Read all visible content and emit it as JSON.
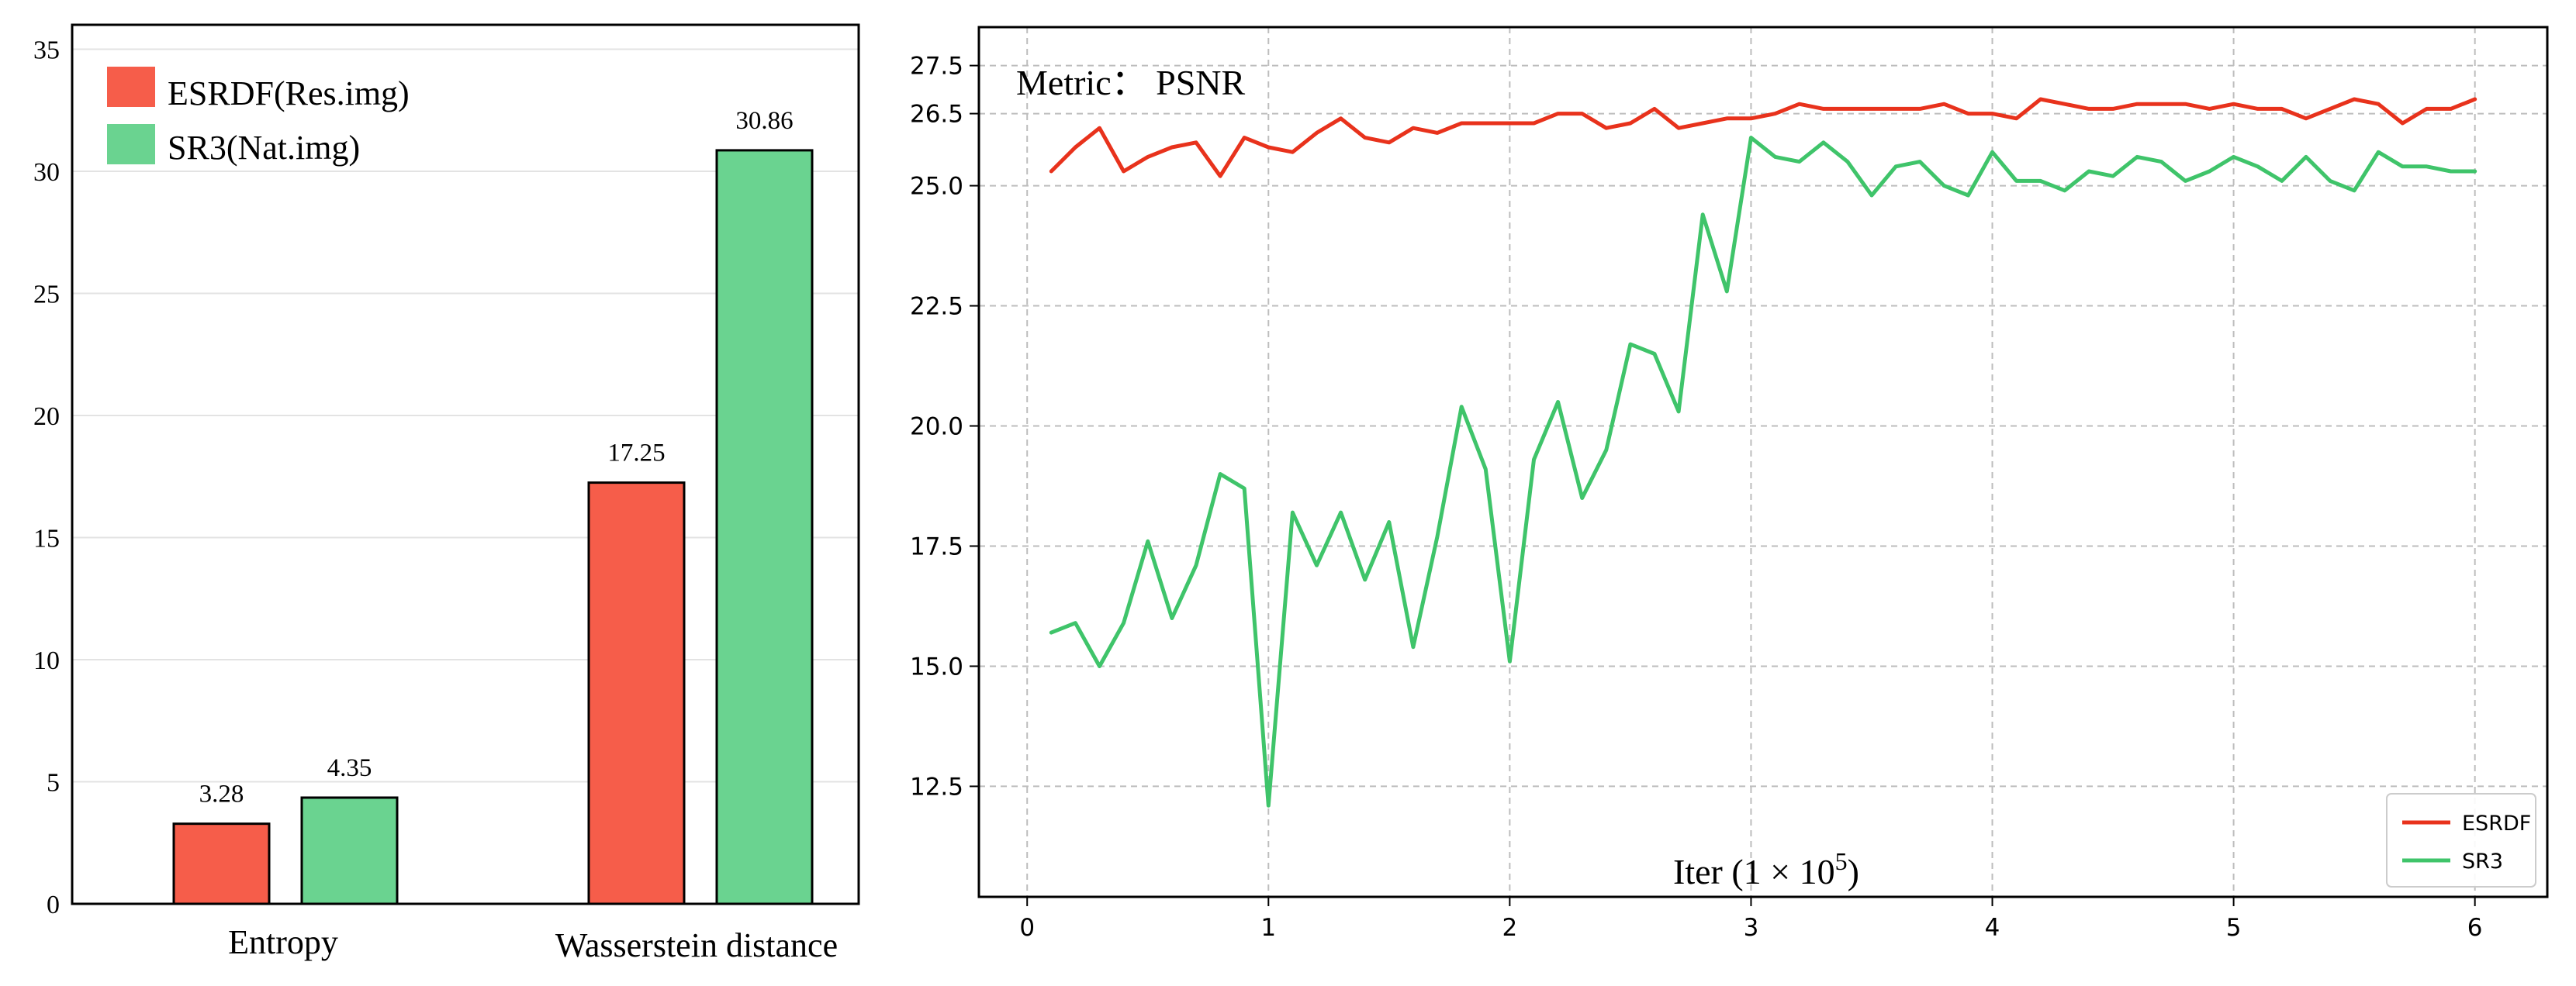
{
  "chart_data": [
    {
      "type": "bar",
      "categories": [
        "Entropy",
        "Wasserstein distance"
      ],
      "series": [
        {
          "name": "ESRDF(Res.img)",
          "values": [
            3.28,
            17.25
          ],
          "color": "#f65d4a"
        },
        {
          "name": "SR3(Nat.img)",
          "values": [
            4.35,
            30.86
          ],
          "color": "#6ad390"
        }
      ],
      "value_labels": [
        [
          "3.28",
          "17.25"
        ],
        [
          "4.35",
          "30.86"
        ]
      ],
      "ylim": [
        0,
        36
      ],
      "yticks": [
        "0",
        "5",
        "10",
        "15",
        "20",
        "25",
        "30",
        "35"
      ],
      "grid": "horizontal",
      "legend_position": "top-left"
    },
    {
      "type": "line",
      "title": "Metric： PSNR",
      "xlabel_prefix": "Iter (1 × 10",
      "xlabel_exponent": "5",
      "xlabel_suffix": ")",
      "xlim": [
        -0.2,
        6.3
      ],
      "ylim": [
        10.2,
        28.3
      ],
      "xticks": [
        "0",
        "1",
        "2",
        "3",
        "4",
        "5",
        "6"
      ],
      "yticks": [
        "12.5",
        "15.0",
        "17.5",
        "20.0",
        "22.5",
        "25.0",
        "26.5",
        "27.5"
      ],
      "grid": true,
      "legend_position": "bottom-right",
      "x": [
        0.1,
        0.2,
        0.3,
        0.4,
        0.5,
        0.6,
        0.7,
        0.8,
        0.9,
        1.0,
        1.1,
        1.2,
        1.3,
        1.4,
        1.5,
        1.6,
        1.7,
        1.8,
        1.9,
        2.0,
        2.1,
        2.2,
        2.3,
        2.4,
        2.5,
        2.6,
        2.7,
        2.8,
        2.9,
        3.0,
        3.1,
        3.2,
        3.3,
        3.4,
        3.5,
        3.6,
        3.7,
        3.8,
        3.9,
        4.0,
        4.1,
        4.2,
        4.3,
        4.4,
        4.5,
        4.6,
        4.7,
        4.8,
        4.9,
        5.0,
        5.1,
        5.2,
        5.3,
        5.4,
        5.5,
        5.6,
        5.7,
        5.8,
        5.9,
        6.0
      ],
      "series": [
        {
          "name": "ESRDF",
          "color": "#e8321c",
          "values": [
            25.3,
            25.8,
            26.2,
            25.3,
            25.6,
            25.8,
            25.9,
            25.2,
            26.0,
            25.8,
            25.7,
            26.1,
            26.4,
            26.0,
            25.9,
            26.2,
            26.1,
            26.3,
            26.3,
            26.3,
            26.3,
            26.5,
            26.5,
            26.2,
            26.3,
            26.6,
            26.2,
            26.3,
            26.4,
            26.4,
            26.5,
            26.7,
            26.6,
            26.6,
            26.6,
            26.6,
            26.6,
            26.7,
            26.5,
            26.5,
            26.4,
            26.8,
            26.7,
            26.6,
            26.6,
            26.7,
            26.7,
            26.7,
            26.6,
            26.7,
            26.6,
            26.6,
            26.4,
            26.6,
            26.8,
            26.7,
            26.3,
            26.6,
            26.6,
            26.8
          ]
        },
        {
          "name": "SR3",
          "color": "#3fc46a",
          "values": [
            15.7,
            15.9,
            15.0,
            15.9,
            17.6,
            16.0,
            17.1,
            19.0,
            18.7,
            12.1,
            18.2,
            17.1,
            18.2,
            16.8,
            18.0,
            15.4,
            17.7,
            20.4,
            19.1,
            15.1,
            19.3,
            20.5,
            18.5,
            19.5,
            21.7,
            21.5,
            20.3,
            24.4,
            22.8,
            26.0,
            25.6,
            25.5,
            25.9,
            25.5,
            24.8,
            25.4,
            25.5,
            25.0,
            24.8,
            25.7,
            25.1,
            25.1,
            24.9,
            25.3,
            25.2,
            25.6,
            25.5,
            25.1,
            25.3,
            25.6,
            25.4,
            25.1,
            25.6,
            25.1,
            24.9,
            25.7,
            25.4,
            25.4,
            25.3,
            25.3
          ]
        }
      ]
    }
  ]
}
